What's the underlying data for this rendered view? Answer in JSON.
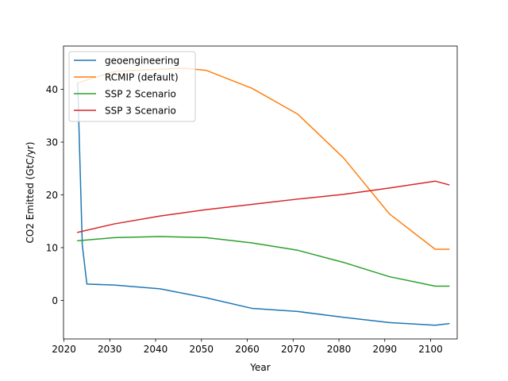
{
  "chart_data": {
    "type": "line",
    "title": "",
    "xlabel": "Year",
    "ylabel": "CO2 Emitted (GtC/yr)",
    "xlim": [
      2019.9,
      2105.8
    ],
    "ylim": [
      -7.3,
      48.2
    ],
    "xticks": [
      2020,
      2030,
      2040,
      2050,
      2060,
      2070,
      2080,
      2090,
      2100
    ],
    "yticks": [
      0,
      10,
      20,
      30,
      40
    ],
    "grid": false,
    "legend_position": "top-left",
    "series": [
      {
        "name": "geoengineering",
        "color": "#1f77b4",
        "x": [
          2023,
          2024,
          2025,
          2031,
          2041,
          2051,
          2061,
          2071,
          2081,
          2091,
          2101,
          2104
        ],
        "y": [
          41.2,
          10.5,
          3.1,
          2.9,
          2.2,
          0.5,
          -1.5,
          -2.1,
          -3.2,
          -4.2,
          -4.7,
          -4.4
        ]
      },
      {
        "name": "RCMIP (default)",
        "color": "#ff7f0e",
        "x": [
          2023,
          2031,
          2041,
          2046,
          2051,
          2061,
          2071,
          2081,
          2091,
          2101,
          2104
        ],
        "y": [
          41.2,
          43.4,
          43.8,
          44.0,
          43.6,
          40.2,
          35.3,
          27.0,
          16.4,
          9.7,
          9.7
        ]
      },
      {
        "name": "SSP 2 Scenario",
        "color": "#2ca02c",
        "x": [
          2023,
          2031,
          2041,
          2051,
          2061,
          2071,
          2081,
          2091,
          2101,
          2104
        ],
        "y": [
          11.3,
          11.9,
          12.1,
          11.9,
          10.9,
          9.5,
          7.2,
          4.5,
          2.7,
          2.7
        ]
      },
      {
        "name": "SSP 3 Scenario",
        "color": "#d62728",
        "x": [
          2023,
          2031,
          2041,
          2051,
          2061,
          2071,
          2081,
          2091,
          2101,
          2104
        ],
        "y": [
          12.9,
          14.5,
          16.0,
          17.2,
          18.2,
          19.2,
          20.1,
          21.3,
          22.6,
          21.9
        ]
      }
    ]
  }
}
